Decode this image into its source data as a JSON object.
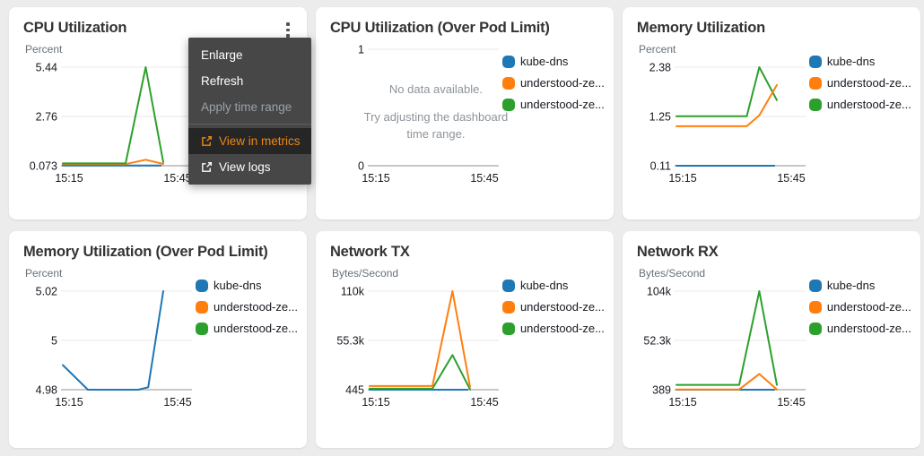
{
  "colors": {
    "blue": "#1f77b4",
    "orange": "#ff7f0e",
    "green": "#2ca02c",
    "menu_highlight_text": "#ec8813",
    "menu_background": "#474747"
  },
  "legend": [
    {
      "color": "blue",
      "label": "kube-dns"
    },
    {
      "color": "orange",
      "label": "understood-ze..."
    },
    {
      "color": "green",
      "label": "understood-ze..."
    }
  ],
  "menu": {
    "primary": [
      {
        "label": "Enlarge",
        "disabled": false
      },
      {
        "label": "Refresh",
        "disabled": false
      },
      {
        "label": "Apply time range",
        "disabled": true
      }
    ],
    "secondary": [
      {
        "label": "View in metrics",
        "icon": "external-link",
        "highlighted": true
      },
      {
        "label": "View logs",
        "icon": "external-link",
        "highlighted": false
      }
    ]
  },
  "panels": [
    {
      "id": "cpu-utilization",
      "title": "CPU Utilization",
      "unit": "Percent",
      "type": "line",
      "yticks": [
        "5.44",
        "2.76",
        "0.073"
      ],
      "ylim": [
        0.073,
        5.44
      ],
      "xticks": [
        "15:15",
        "15:45"
      ],
      "has_menu": true,
      "series": [
        {
          "name": "kube-dns",
          "color": "blue",
          "points": [
            [
              0,
              0.09
            ],
            [
              0.78,
              0.09
            ]
          ]
        },
        {
          "name": "understood-ze...",
          "color": "orange",
          "points": [
            [
              0,
              0.16
            ],
            [
              0.5,
              0.16
            ],
            [
              0.66,
              0.4
            ],
            [
              0.8,
              0.17
            ]
          ]
        },
        {
          "name": "understood-ze...",
          "color": "green",
          "points": [
            [
              0,
              0.2
            ],
            [
              0.5,
              0.2
            ],
            [
              0.66,
              5.44
            ],
            [
              0.8,
              0.27
            ]
          ]
        }
      ]
    },
    {
      "id": "cpu-utilization-over-pod-limit",
      "title": "CPU Utilization (Over Pod Limit)",
      "unit": null,
      "type": "line",
      "yticks": [
        "1",
        "0"
      ],
      "ylim": [
        0,
        1
      ],
      "xticks": [
        "15:15",
        "15:45"
      ],
      "no_data": {
        "line1": "No data available.",
        "line2": "Try adjusting the dashboard time range."
      },
      "series": []
    },
    {
      "id": "memory-utilization",
      "title": "Memory Utilization",
      "unit": "Percent",
      "type": "line",
      "yticks": [
        "2.38",
        "1.25",
        "0.11"
      ],
      "ylim": [
        0.11,
        2.38
      ],
      "xticks": [
        "15:15",
        "15:45"
      ],
      "series": [
        {
          "name": "kube-dns",
          "color": "blue",
          "points": [
            [
              0,
              0.11
            ],
            [
              0.78,
              0.11
            ]
          ]
        },
        {
          "name": "understood-ze...",
          "color": "green",
          "points": [
            [
              0,
              1.25
            ],
            [
              0.56,
              1.25
            ],
            [
              0.66,
              2.38
            ],
            [
              0.8,
              1.62
            ]
          ]
        },
        {
          "name": "understood-ze...",
          "color": "orange",
          "points": [
            [
              0,
              1.02
            ],
            [
              0.56,
              1.02
            ],
            [
              0.66,
              1.27
            ],
            [
              0.8,
              1.97
            ]
          ]
        }
      ]
    },
    {
      "id": "memory-utilization-over-pod-limit",
      "title": "Memory Utilization (Over Pod Limit)",
      "unit": "Percent",
      "type": "line",
      "yticks": [
        "5.02",
        "5",
        "4.98"
      ],
      "ylim": [
        4.98,
        5.02
      ],
      "xticks": [
        "15:15",
        "15:45"
      ],
      "series": [
        {
          "name": "kube-dns",
          "color": "blue",
          "points": [
            [
              0,
              4.99
            ],
            [
              0.2,
              4.98
            ],
            [
              0.6,
              4.98
            ],
            [
              0.68,
              4.981
            ],
            [
              0.8,
              5.02
            ]
          ]
        }
      ]
    },
    {
      "id": "network-tx",
      "title": "Network TX",
      "unit": "Bytes/Second",
      "type": "line",
      "yticks": [
        "110k",
        "55.3k",
        "445"
      ],
      "ylim": [
        445,
        110000
      ],
      "xticks": [
        "15:15",
        "15:45"
      ],
      "series": [
        {
          "name": "kube-dns",
          "color": "blue",
          "points": [
            [
              0,
              445
            ],
            [
              0.78,
              445
            ]
          ]
        },
        {
          "name": "understood-ze...",
          "color": "green",
          "points": [
            [
              0,
              1500
            ],
            [
              0.5,
              1500
            ],
            [
              0.66,
              39000
            ],
            [
              0.8,
              700
            ]
          ]
        },
        {
          "name": "understood-ze...",
          "color": "orange",
          "points": [
            [
              0,
              4500
            ],
            [
              0.5,
              4500
            ],
            [
              0.66,
              110000
            ],
            [
              0.8,
              3500
            ]
          ]
        }
      ]
    },
    {
      "id": "network-rx",
      "title": "Network RX",
      "unit": "Bytes/Second",
      "type": "line",
      "yticks": [
        "104k",
        "52.3k",
        "389"
      ],
      "ylim": [
        389,
        104000
      ],
      "xticks": [
        "15:15",
        "15:45"
      ],
      "series": [
        {
          "name": "kube-dns",
          "color": "blue",
          "points": [
            [
              0,
              389
            ],
            [
              0.78,
              389
            ]
          ]
        },
        {
          "name": "understood-ze...",
          "color": "orange",
          "points": [
            [
              0,
              700
            ],
            [
              0.5,
              700
            ],
            [
              0.66,
              17000
            ],
            [
              0.8,
              700
            ]
          ]
        },
        {
          "name": "understood-ze...",
          "color": "green",
          "points": [
            [
              0,
              5500
            ],
            [
              0.5,
              5500
            ],
            [
              0.66,
              104000
            ],
            [
              0.8,
              5500
            ]
          ]
        }
      ]
    }
  ]
}
